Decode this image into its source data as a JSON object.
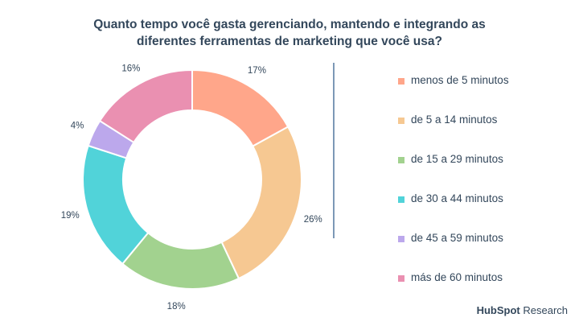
{
  "chart_data": {
    "type": "pie",
    "donut": true,
    "title_lines": [
      "Quanto tempo você gasta gerenciando, mantendo e integrando as",
      "diferentes ferramentas de marketing que você usa?"
    ],
    "categories": [
      "menos de 5 minutos",
      "de 5 a 14 minutos",
      "de 15 a 29 minutos",
      "de 30 a 44 minutos",
      "de 45 a 59 minutos",
      "más de 60 minutos"
    ],
    "values": [
      17,
      26,
      18,
      19,
      4,
      16
    ],
    "value_labels": [
      "17%",
      "26%",
      "18%",
      "19%",
      "4%",
      "16%"
    ],
    "colors": [
      "#ffa68a",
      "#f6c892",
      "#a2d28f",
      "#51d3d9",
      "#bca8ec",
      "#ea90b1"
    ],
    "legend_position": "right"
  },
  "brand": {
    "hub": "HubSpot",
    "research": "Research"
  }
}
